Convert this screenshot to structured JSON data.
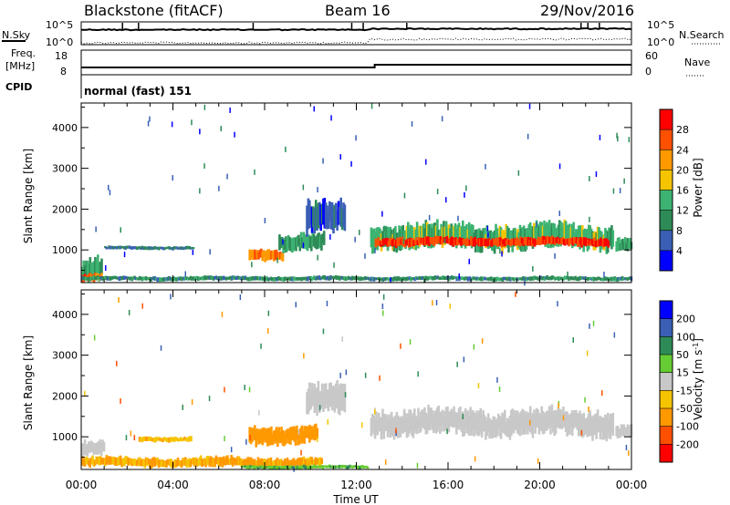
{
  "header": {
    "title": "Blackstone (fitACF)",
    "beam": "Beam 16",
    "date": "29/Nov/2016"
  },
  "params": {
    "nsky_label": "N.Sky",
    "nsearch_label": "N.Search",
    "noise_top": "10^5",
    "noise_bottom": "10^0",
    "freq_label_1": "Freq.",
    "freq_label_2": "[MHz]",
    "freq_top": "18",
    "freq_bottom": "8",
    "nave_label": "Nave",
    "nave_top": "60",
    "nave_bottom": "0",
    "cpid_label": "CPID",
    "cpid_value": "normal (fast) 151"
  },
  "colors": {
    "power": [
      "#0000ff",
      "#3a5fb5",
      "#2e8b57",
      "#3cb371",
      "#f5c400",
      "#ff9900",
      "#ff5000",
      "#ff0000"
    ],
    "velocity": [
      "#ff0000",
      "#ff5000",
      "#ff9900",
      "#f5c400",
      "#c8c8c8",
      "#66cc33",
      "#2e8b57",
      "#3a5fb5",
      "#0000ff"
    ]
  },
  "chart_data": [
    {
      "type": "heatmap",
      "ylabel": "Slant Range [km]",
      "xlabel": "Time UT",
      "x_ticks": [
        "00:00",
        "04:00",
        "08:00",
        "12:00",
        "16:00",
        "20:00",
        "00:00"
      ],
      "x_range_hours": [
        0,
        24
      ],
      "y_ticks": [
        1000,
        2000,
        3000,
        4000
      ],
      "ylim": [
        200,
        4600
      ],
      "colorbar": {
        "label": "Power [dB]",
        "ticks": [
          "28",
          "24",
          "20",
          "16",
          "12",
          "8",
          "4"
        ],
        "range": [
          0,
          32
        ]
      },
      "features": [
        {
          "t_start": 0.0,
          "t_end": 0.9,
          "r_center": 480,
          "r_width": 520,
          "level_db": 12
        },
        {
          "t_start": 0.0,
          "t_end": 0.9,
          "r_center": 320,
          "r_width": 180,
          "level_db": 26
        },
        {
          "t_start": 1.0,
          "t_end": 4.9,
          "r_center": 1050,
          "r_width": 80,
          "level_db": 8
        },
        {
          "t_start": 7.3,
          "t_end": 8.8,
          "r_center": 900,
          "r_width": 260,
          "level_db": 24
        },
        {
          "t_start": 8.6,
          "t_end": 10.6,
          "r_center": 1200,
          "r_width": 380,
          "level_db": 12
        },
        {
          "t_start": 9.8,
          "t_end": 11.5,
          "r_center": 1750,
          "r_width": 700,
          "level_db": 6
        },
        {
          "t_start": 12.6,
          "t_end": 23.2,
          "r_center": 1330,
          "r_width": 560,
          "level_db": 14
        },
        {
          "t_start": 12.8,
          "t_end": 23.0,
          "r_center": 1200,
          "r_width": 200,
          "level_db": 28
        },
        {
          "t_start": 23.3,
          "t_end": 24.0,
          "r_center": 1150,
          "r_width": 300,
          "level_db": 12
        },
        {
          "t_start": 0.0,
          "t_end": 24.0,
          "r_center": 300,
          "r_width": 100,
          "level_db": 10
        }
      ]
    },
    {
      "type": "heatmap",
      "ylabel": "Slant Range [km]",
      "xlabel": "Time UT",
      "x_ticks": [
        "00:00",
        "04:00",
        "08:00",
        "12:00",
        "16:00",
        "20:00",
        "00:00"
      ],
      "x_range_hours": [
        0,
        24
      ],
      "y_ticks": [
        1000,
        2000,
        3000,
        4000
      ],
      "ylim": [
        200,
        4600
      ],
      "colorbar": {
        "label": "Velocity [m s^-1]",
        "ticks": [
          "200",
          "100",
          "50",
          "15",
          "-15",
          "-50",
          "-100",
          "-200"
        ],
        "range": [
          -250,
          250
        ]
      },
      "features": [
        {
          "t_start": 0.0,
          "t_end": 1.0,
          "r_center": 700,
          "r_width": 350,
          "velocity": 0
        },
        {
          "t_start": 2.5,
          "t_end": 4.8,
          "r_center": 950,
          "r_width": 120,
          "velocity": -40
        },
        {
          "t_start": 0.0,
          "t_end": 10.5,
          "r_center": 380,
          "r_width": 220,
          "velocity": -55
        },
        {
          "t_start": 7.3,
          "t_end": 10.3,
          "r_center": 1050,
          "r_width": 420,
          "velocity": -80
        },
        {
          "t_start": 7.0,
          "t_end": 12.5,
          "r_center": 260,
          "r_width": 80,
          "velocity": 40
        },
        {
          "t_start": 9.8,
          "t_end": 11.5,
          "r_center": 1900,
          "r_width": 700,
          "velocity": 0
        },
        {
          "t_start": 12.6,
          "t_end": 23.2,
          "r_center": 1350,
          "r_width": 580,
          "velocity": 0
        },
        {
          "t_start": 23.3,
          "t_end": 24.0,
          "r_center": 1150,
          "r_width": 300,
          "velocity": 0
        }
      ]
    }
  ]
}
